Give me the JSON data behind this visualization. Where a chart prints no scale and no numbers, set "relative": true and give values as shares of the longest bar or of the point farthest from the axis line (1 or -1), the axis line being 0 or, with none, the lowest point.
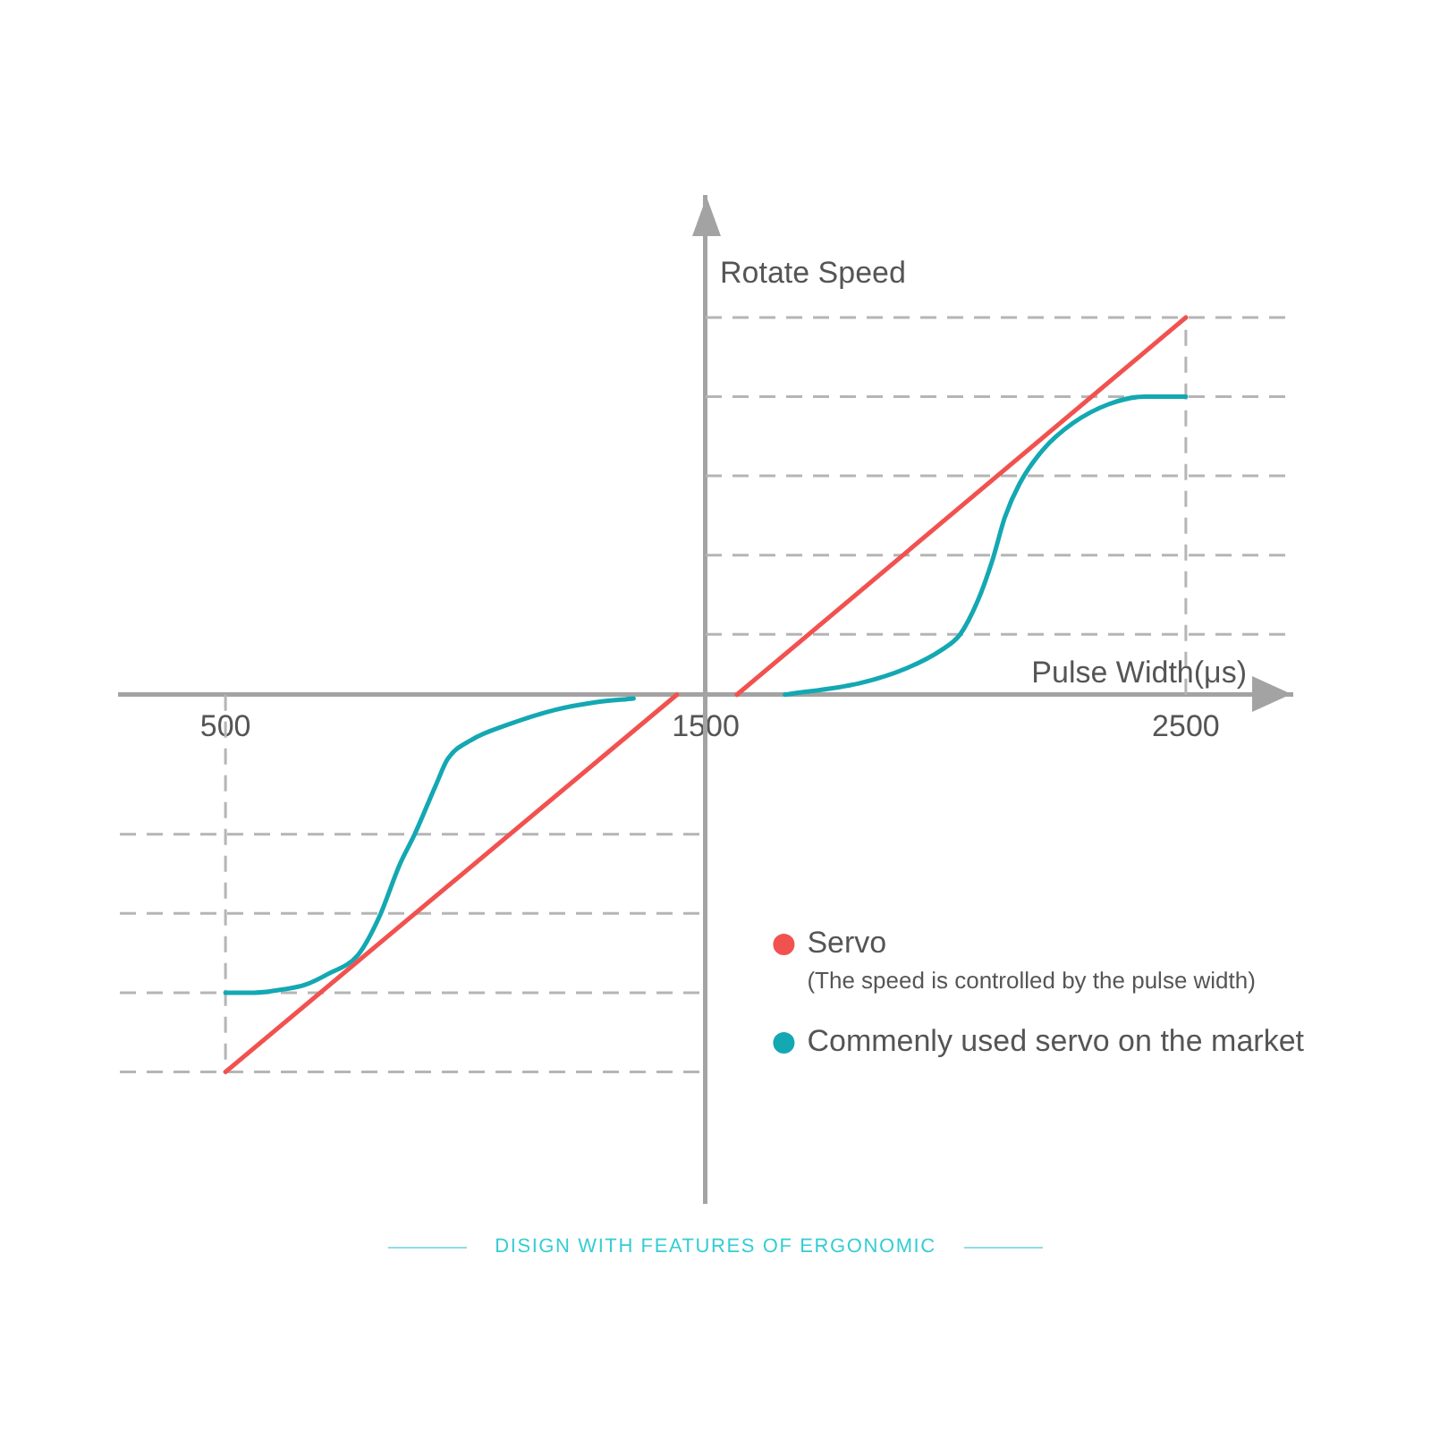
{
  "chart_data": {
    "type": "line",
    "xlabel": "Pulse Width(μs)",
    "ylabel": "Rotate Speed",
    "relative": true,
    "xlim": [
      280,
      2720
    ],
    "xticks": [
      500,
      1500,
      2500
    ],
    "legend": "bottom right",
    "marker": "none",
    "series": [
      {
        "name": "Servo",
        "color": "#f1524f",
        "x": [
          500,
          1440,
          1500,
          1565,
          2500
        ],
        "values": [
          -1,
          0,
          null,
          0,
          1
        ]
      },
      {
        "name": "Commenly used servo on the market",
        "color": "#13a8b2",
        "x": [
          500,
          560,
          627,
          664,
          714,
          776,
          820,
          863,
          894,
          938,
          963,
          1012,
          1087,
          1187,
          1270,
          1350,
          1500,
          1665,
          1819,
          1918,
          1993,
          2030,
          2067,
          2098,
          2123,
          2154,
          2203,
          2265,
          2339,
          2413,
          2500
        ],
        "values": [
          -0.79,
          -0.79,
          -0.78,
          -0.77,
          -0.74,
          -0.69,
          -0.59,
          -0.45,
          -0.37,
          -0.24,
          -0.17,
          -0.12,
          -0.08,
          -0.04,
          -0.02,
          -0.01,
          null,
          0,
          0.03,
          0.07,
          0.12,
          0.16,
          0.25,
          0.36,
          0.47,
          0.56,
          0.65,
          0.72,
          0.77,
          0.79,
          0.79
        ]
      }
    ],
    "ref_lines": [
      {
        "axis": "y",
        "value": 1,
        "color": "#b5b5b5",
        "line_style": "dashed"
      },
      {
        "axis": "y",
        "value": 0.79,
        "color": "#b5b5b5",
        "line_style": "dashed"
      },
      {
        "axis": "y",
        "value": 0.58,
        "color": "#b5b5b5",
        "line_style": "dashed"
      },
      {
        "axis": "y",
        "value": 0.37,
        "color": "#b5b5b5",
        "line_style": "dashed"
      },
      {
        "axis": "y",
        "value": 0.16,
        "color": "#b5b5b5",
        "line_style": "dashed"
      },
      {
        "axis": "y",
        "value": -0.37,
        "color": "#b5b5b5",
        "line_style": "dashed"
      },
      {
        "axis": "y",
        "value": -0.58,
        "color": "#b5b5b5",
        "line_style": "dashed"
      },
      {
        "axis": "y",
        "value": -0.79,
        "color": "#b5b5b5",
        "line_style": "dashed"
      },
      {
        "axis": "y",
        "value": -1,
        "color": "#b5b5b5",
        "line_style": "dashed"
      },
      {
        "axis": "x",
        "value": 500,
        "color": "#b5b5b5",
        "line_style": "dashed"
      },
      {
        "axis": "x",
        "value": 2500,
        "color": "#b5b5b5",
        "line_style": "dashed"
      }
    ],
    "annotations": [
      "(The speed is controlled by the pulse width)",
      "DISIGN WITH FEATURES OF ERGONOMIC"
    ]
  }
}
